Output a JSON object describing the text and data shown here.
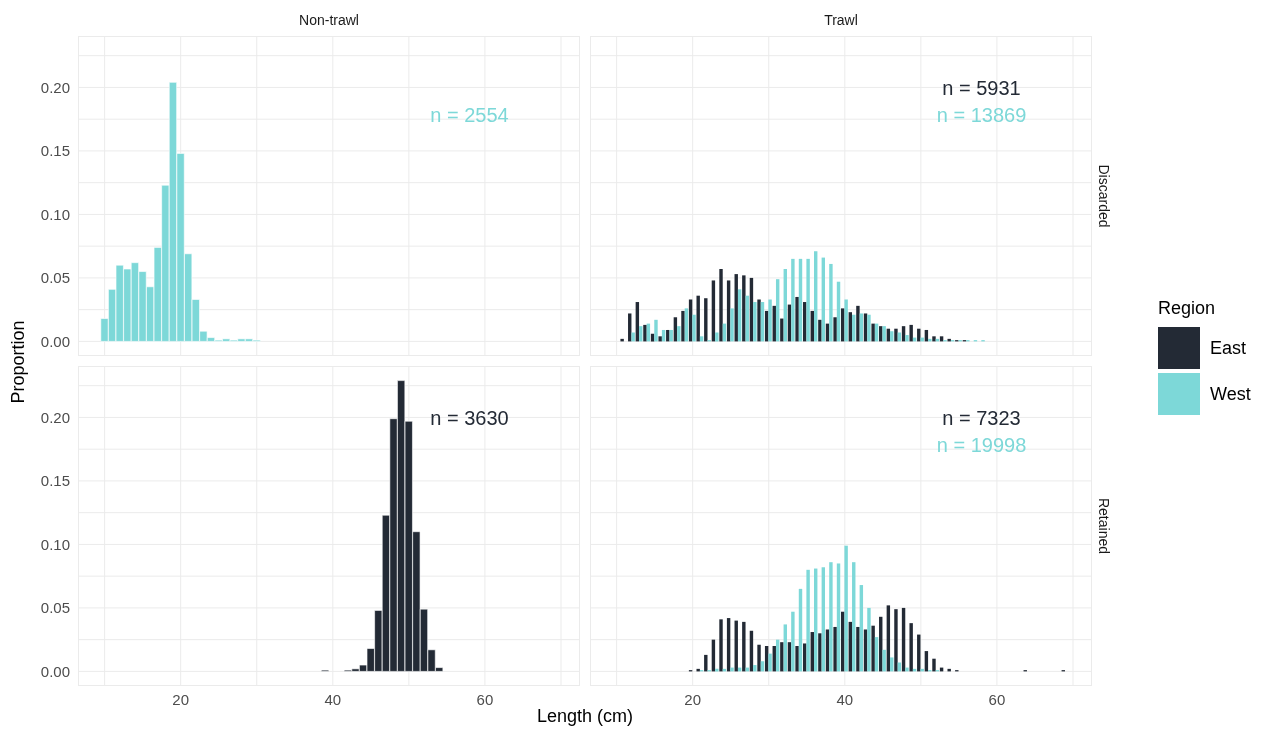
{
  "chart_data": [
    {
      "type": "bar",
      "title": "Non-trawl",
      "ylabel": "Proportion",
      "tick_labels": "y",
      "grid": true,
      "xlim": [
        6.5,
        72.5
      ],
      "xticks": [
        {
          "value": 10,
          "label": null
        },
        {
          "value": 20,
          "label": null
        },
        {
          "value": 30,
          "label": null
        },
        {
          "value": 40,
          "label": null
        },
        {
          "value": 50,
          "label": null
        },
        {
          "value": 60,
          "label": null
        },
        {
          "value": 70,
          "label": null
        }
      ],
      "ylim": [
        -0.0115,
        0.2405
      ],
      "yticks": [
        {
          "value": 0,
          "label": "0.00"
        },
        {
          "value": 0.025,
          "label": null
        },
        {
          "value": 0.05,
          "label": "0.05"
        },
        {
          "value": 0.075,
          "label": null
        },
        {
          "value": 0.1,
          "label": "0.10"
        },
        {
          "value": 0.125,
          "label": null
        },
        {
          "value": 0.15,
          "label": "0.15"
        },
        {
          "value": 0.175,
          "label": null
        },
        {
          "value": 0.2,
          "label": "0.20"
        },
        {
          "value": 0.225,
          "label": null
        }
      ],
      "annotations": [
        "n = 2554"
      ],
      "series": [
        {
          "color": "#7dd8d8",
          "x": [
            10,
            11,
            12,
            13,
            14,
            15,
            16,
            17,
            18,
            19,
            20,
            21,
            22,
            23,
            24,
            25,
            26,
            27,
            28,
            29,
            30
          ],
          "values": [
            0.018,
            0.041,
            0.06,
            0.057,
            0.062,
            0.055,
            0.043,
            0.074,
            0.123,
            0.204,
            0.148,
            0.069,
            0.033,
            0.008,
            0.003,
            0.001,
            0.002,
            0.001,
            0.002,
            0.002,
            0.001
          ]
        }
      ]
    },
    {
      "type": "bar",
      "title": "Trawl",
      "y2label": "Discarded",
      "tick_labels": false,
      "grid": true,
      "legend": "right",
      "legend_title": "Region",
      "xlim": [
        6.5,
        72.5
      ],
      "xticks": [
        {
          "value": 10,
          "label": null
        },
        {
          "value": 20,
          "label": null
        },
        {
          "value": 30,
          "label": null
        },
        {
          "value": 40,
          "label": null
        },
        {
          "value": 50,
          "label": null
        },
        {
          "value": 60,
          "label": null
        },
        {
          "value": 70,
          "label": null
        }
      ],
      "ylim": [
        -0.0115,
        0.2405
      ],
      "yticks": [
        {
          "value": 0,
          "label": null
        },
        {
          "value": 0.025,
          "label": null
        },
        {
          "value": 0.05,
          "label": null
        },
        {
          "value": 0.075,
          "label": null
        },
        {
          "value": 0.1,
          "label": null
        },
        {
          "value": 0.125,
          "label": null
        },
        {
          "value": 0.15,
          "label": null
        },
        {
          "value": 0.175,
          "label": null
        },
        {
          "value": 0.2,
          "label": null
        },
        {
          "value": 0.225,
          "label": null
        }
      ],
      "annotations": [
        "n = 5931",
        "n = 13869"
      ],
      "series": [
        {
          "name": "East",
          "color": "#232a35",
          "x": [
            11,
            12,
            13,
            14,
            15,
            16,
            17,
            18,
            19,
            20,
            21,
            22,
            23,
            24,
            25,
            26,
            27,
            28,
            29,
            30,
            31,
            32,
            33,
            34,
            35,
            36,
            37,
            38,
            39,
            40,
            41,
            42,
            43,
            44,
            45,
            46,
            47,
            48,
            49,
            50,
            51,
            52,
            53,
            54,
            55,
            56
          ],
          "values": [
            0.002,
            0.022,
            0.031,
            0.013,
            0.006,
            0.004,
            0.009,
            0.019,
            0.024,
            0.033,
            0.036,
            0.034,
            0.048,
            0.057,
            0.048,
            0.053,
            0.052,
            0.05,
            0.033,
            0.024,
            0.028,
            0.018,
            0.029,
            0.035,
            0.031,
            0.024,
            0.017,
            0.014,
            0.019,
            0.026,
            0.023,
            0.028,
            0.022,
            0.014,
            0.012,
            0.01,
            0.01,
            0.012,
            0.013,
            0.01,
            0.009,
            0.004,
            0.004,
            0.002,
            0.001,
            0.001
          ]
        },
        {
          "name": "West",
          "color": "#7dd8d8",
          "x": [
            12,
            13,
            14,
            15,
            16,
            17,
            18,
            19,
            20,
            21,
            22,
            23,
            24,
            25,
            26,
            27,
            28,
            29,
            30,
            31,
            32,
            33,
            34,
            35,
            36,
            37,
            38,
            39,
            40,
            41,
            42,
            43,
            44,
            45,
            46,
            47,
            48,
            49,
            50,
            51,
            52,
            53,
            54,
            55,
            56,
            57,
            58
          ],
          "values": [
            0.007,
            0.012,
            0.014,
            0.017,
            0.009,
            0.009,
            0.012,
            0.026,
            0.021,
            0.004,
            0.001,
            0.007,
            0.014,
            0.026,
            0.041,
            0.036,
            0.031,
            0.031,
            0.033,
            0.049,
            0.057,
            0.065,
            0.065,
            0.065,
            0.071,
            0.066,
            0.061,
            0.047,
            0.033,
            0.021,
            0.022,
            0.021,
            0.014,
            0.012,
            0.008,
            0.007,
            0.005,
            0.003,
            0.003,
            0.002,
            0.002,
            0.001,
            0.001,
            0.001,
            0.001,
            0.001,
            0.001
          ]
        }
      ]
    },
    {
      "type": "bar",
      "xlabel": "Length (cm)",
      "grid": true,
      "xlim": [
        6.5,
        72.5
      ],
      "xticks": [
        {
          "value": 10,
          "label": null
        },
        {
          "value": 20,
          "label": "20"
        },
        {
          "value": 30,
          "label": null
        },
        {
          "value": 40,
          "label": "40"
        },
        {
          "value": 50,
          "label": null
        },
        {
          "value": 60,
          "label": "60"
        },
        {
          "value": 70,
          "label": null
        }
      ],
      "ylim": [
        -0.0115,
        0.2405
      ],
      "yticks": [
        {
          "value": 0,
          "label": "0.00"
        },
        {
          "value": 0.025,
          "label": null
        },
        {
          "value": 0.05,
          "label": "0.05"
        },
        {
          "value": 0.075,
          "label": null
        },
        {
          "value": 0.1,
          "label": "0.10"
        },
        {
          "value": 0.125,
          "label": null
        },
        {
          "value": 0.15,
          "label": "0.15"
        },
        {
          "value": 0.175,
          "label": null
        },
        {
          "value": 0.2,
          "label": "0.20"
        },
        {
          "value": 0.225,
          "label": null
        }
      ],
      "annotations": [
        "n = 3630"
      ],
      "series": [
        {
          "color": "#232a35",
          "x": [
            39,
            42,
            43,
            44,
            45,
            46,
            47,
            48,
            49,
            50,
            51,
            52,
            53,
            54
          ],
          "values": [
            0.001,
            0.001,
            0.002,
            0.005,
            0.018,
            0.048,
            0.123,
            0.199,
            0.229,
            0.197,
            0.11,
            0.049,
            0.017,
            0.003
          ]
        }
      ]
    },
    {
      "type": "bar",
      "y2label": "Retained",
      "tick_labels": "x",
      "grid": true,
      "xlim": [
        6.5,
        72.5
      ],
      "xticks": [
        {
          "value": 10,
          "label": null
        },
        {
          "value": 20,
          "label": "20"
        },
        {
          "value": 30,
          "label": null
        },
        {
          "value": 40,
          "label": "40"
        },
        {
          "value": 50,
          "label": null
        },
        {
          "value": 60,
          "label": "60"
        },
        {
          "value": 70,
          "label": null
        }
      ],
      "ylim": [
        -0.0115,
        0.2405
      ],
      "yticks": [
        {
          "value": 0,
          "label": null
        },
        {
          "value": 0.025,
          "label": null
        },
        {
          "value": 0.05,
          "label": null
        },
        {
          "value": 0.075,
          "label": null
        },
        {
          "value": 0.1,
          "label": null
        },
        {
          "value": 0.125,
          "label": null
        },
        {
          "value": 0.15,
          "label": null
        },
        {
          "value": 0.175,
          "label": null
        },
        {
          "value": 0.2,
          "label": null
        },
        {
          "value": 0.225,
          "label": null
        }
      ],
      "annotations": [
        "n = 7323",
        "n = 19998"
      ],
      "series": [
        {
          "color": "#232a35",
          "x": [
            20,
            21,
            22,
            23,
            24,
            25,
            26,
            27,
            28,
            29,
            30,
            31,
            32,
            33,
            34,
            35,
            36,
            37,
            38,
            39,
            40,
            41,
            42,
            43,
            44,
            45,
            46,
            47,
            48,
            49,
            50,
            51,
            52,
            53,
            54,
            55,
            64,
            69
          ],
          "values": [
            0.001,
            0.002,
            0.013,
            0.025,
            0.041,
            0.042,
            0.04,
            0.039,
            0.032,
            0.021,
            0.02,
            0.02,
            0.023,
            0.023,
            0.02,
            0.022,
            0.031,
            0.03,
            0.033,
            0.035,
            0.047,
            0.039,
            0.035,
            0.033,
            0.036,
            0.043,
            0.052,
            0.049,
            0.05,
            0.038,
            0.029,
            0.016,
            0.01,
            0.003,
            0.002,
            0.001,
            0.001,
            0.001
          ]
        },
        {
          "color": "#7dd8d8",
          "x": [
            21,
            22,
            23,
            24,
            25,
            26,
            27,
            28,
            29,
            30,
            31,
            32,
            33,
            34,
            35,
            36,
            37,
            38,
            39,
            40,
            41,
            42,
            43,
            44,
            45,
            46,
            47,
            48,
            49,
            50,
            51,
            52
          ],
          "values": [
            0.001,
            0.001,
            0.002,
            0.002,
            0.003,
            0.003,
            0.003,
            0.005,
            0.008,
            0.014,
            0.025,
            0.037,
            0.047,
            0.065,
            0.08,
            0.081,
            0.082,
            0.086,
            0.085,
            0.099,
            0.086,
            0.068,
            0.05,
            0.027,
            0.017,
            0.011,
            0.007,
            0.003,
            0.002,
            0.002,
            0.001,
            0.001
          ]
        }
      ]
    }
  ]
}
